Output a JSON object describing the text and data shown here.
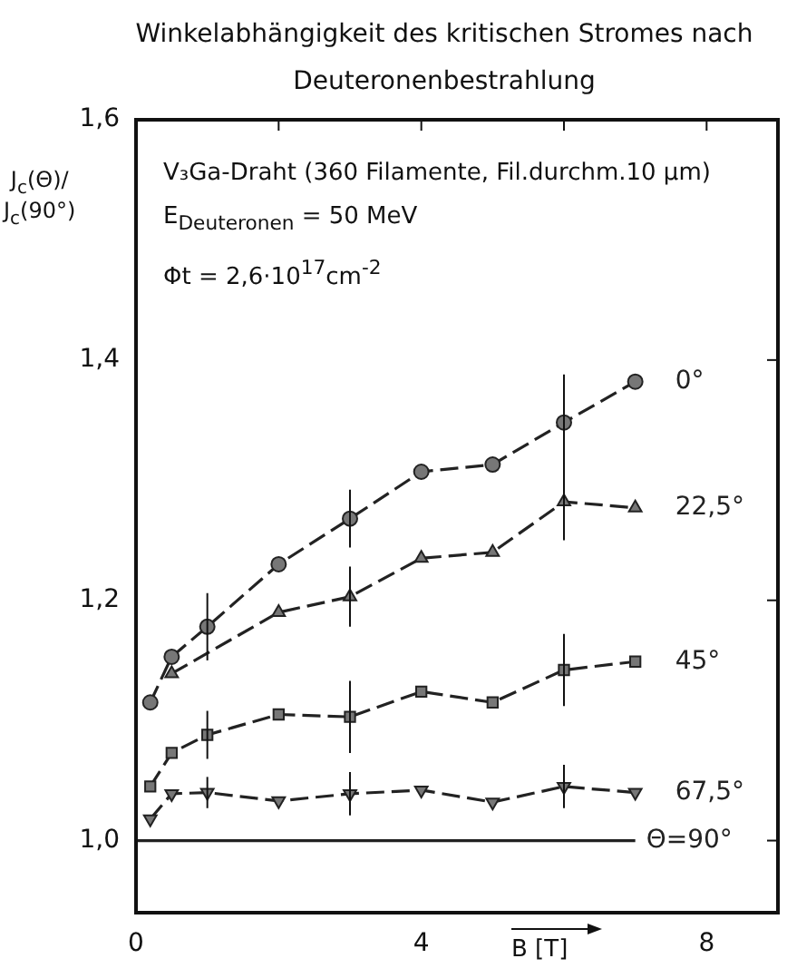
{
  "chart_data": {
    "type": "line",
    "title": "Winkelabhängigkeit des kritischen Stromes nach Deuteronenbestrahlung",
    "xlabel": "B [T]",
    "ylabel": "J$_{c}$(Θ)/J$_{c}$(90°)",
    "annotations": [
      "V₃Ga-Draht (360 Filamente, Fil.durchm.10 µm)",
      "E$_{Deuteronen}$ = 50 MeV",
      "Φt = 2,6·10$^{17}$cm$^{-2}$"
    ],
    "xlim": [
      0,
      9
    ],
    "xticks": [
      {
        "value": 0,
        "label": "0"
      },
      {
        "value": 2,
        "label": null
      },
      {
        "value": 4,
        "label": "4"
      },
      {
        "value": 6,
        "label": null
      },
      {
        "value": 8,
        "label": "8"
      }
    ],
    "ylim": [
      0.94,
      1.6
    ],
    "yticks": [
      {
        "value": 1.0,
        "label": "1,0"
      },
      {
        "value": 1.2,
        "label": "1,2"
      },
      {
        "value": 1.4,
        "label": "1,4"
      },
      {
        "value": 1.6,
        "label": "1,6"
      }
    ],
    "grid": false,
    "legend": false,
    "line_style": "dashed",
    "series": [
      {
        "name": "0°",
        "color": "#222222",
        "marker": "circle",
        "x": [
          0.2,
          0.5,
          1,
          2,
          3,
          4,
          5,
          6,
          7
        ],
        "values": [
          1.115,
          1.153,
          1.178,
          1.23,
          1.268,
          1.307,
          1.313,
          1.348,
          1.382
        ],
        "errors": [
          null,
          null,
          0.028,
          null,
          0.024,
          null,
          null,
          0.04,
          null
        ]
      },
      {
        "name": "22,5°",
        "color": "#222222",
        "marker": "triangle",
        "x": [
          0.5,
          2,
          3,
          4,
          5,
          6,
          7
        ],
        "values": [
          1.139,
          1.19,
          1.203,
          1.235,
          1.24,
          1.282,
          1.277
        ],
        "errors": [
          null,
          null,
          0.025,
          null,
          null,
          0.032,
          null
        ]
      },
      {
        "name": "45°",
        "color": "#222222",
        "marker": "square",
        "x": [
          0.2,
          0.5,
          1,
          2,
          3,
          4,
          5,
          6,
          7
        ],
        "values": [
          1.045,
          1.073,
          1.088,
          1.105,
          1.103,
          1.124,
          1.115,
          1.142,
          1.149
        ],
        "errors": [
          null,
          null,
          0.02,
          null,
          0.03,
          null,
          null,
          0.03,
          null
        ]
      },
      {
        "name": "67,5°",
        "color": "#222222",
        "marker": "triangle-down",
        "x": [
          0.2,
          0.5,
          1,
          2,
          3,
          4,
          5,
          6,
          7
        ],
        "values": [
          1.018,
          1.039,
          1.04,
          1.033,
          1.039,
          1.042,
          1.032,
          1.045,
          1.04
        ],
        "errors": [
          null,
          null,
          0.013,
          null,
          0.018,
          null,
          null,
          0.018,
          null
        ]
      },
      {
        "name": "Θ=90°",
        "color": "#222222",
        "marker": "none",
        "line_style": "solid",
        "x": [
          0,
          7
        ],
        "values": [
          1.0,
          1.0
        ]
      }
    ]
  }
}
